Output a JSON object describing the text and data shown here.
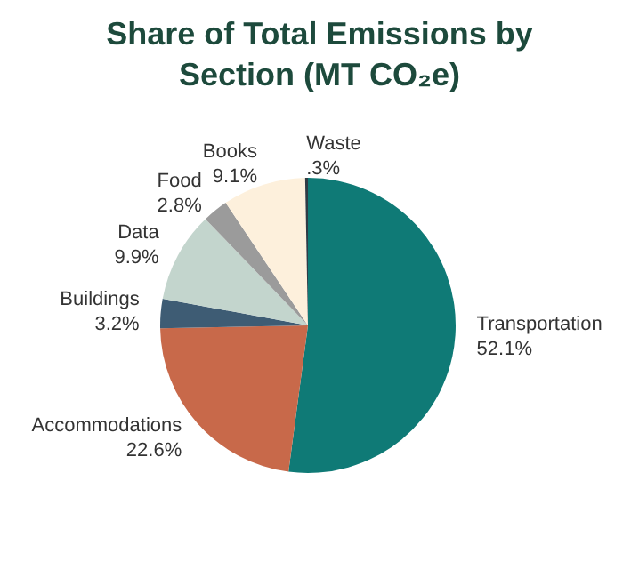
{
  "chart_data": {
    "type": "pie",
    "title": "Share of Total Emissions by Section (MT CO₂e)",
    "categories": [
      "Transportation",
      "Accommodations",
      "Buildings",
      "Data",
      "Food",
      "Books",
      "Waste"
    ],
    "values": [
      52.1,
      22.6,
      3.2,
      9.9,
      2.8,
      9.1,
      0.3
    ],
    "colors": [
      "#0f7a76",
      "#c8694a",
      "#3e5c74",
      "#c3d5cd",
      "#9b9b9b",
      "#fdf0dc",
      "#2f3b45"
    ],
    "value_labels": [
      "52.1%",
      "22.6%",
      "3.2%",
      "9.9%",
      "2.8%",
      "9.1%",
      ".3%"
    ],
    "legend": false
  }
}
